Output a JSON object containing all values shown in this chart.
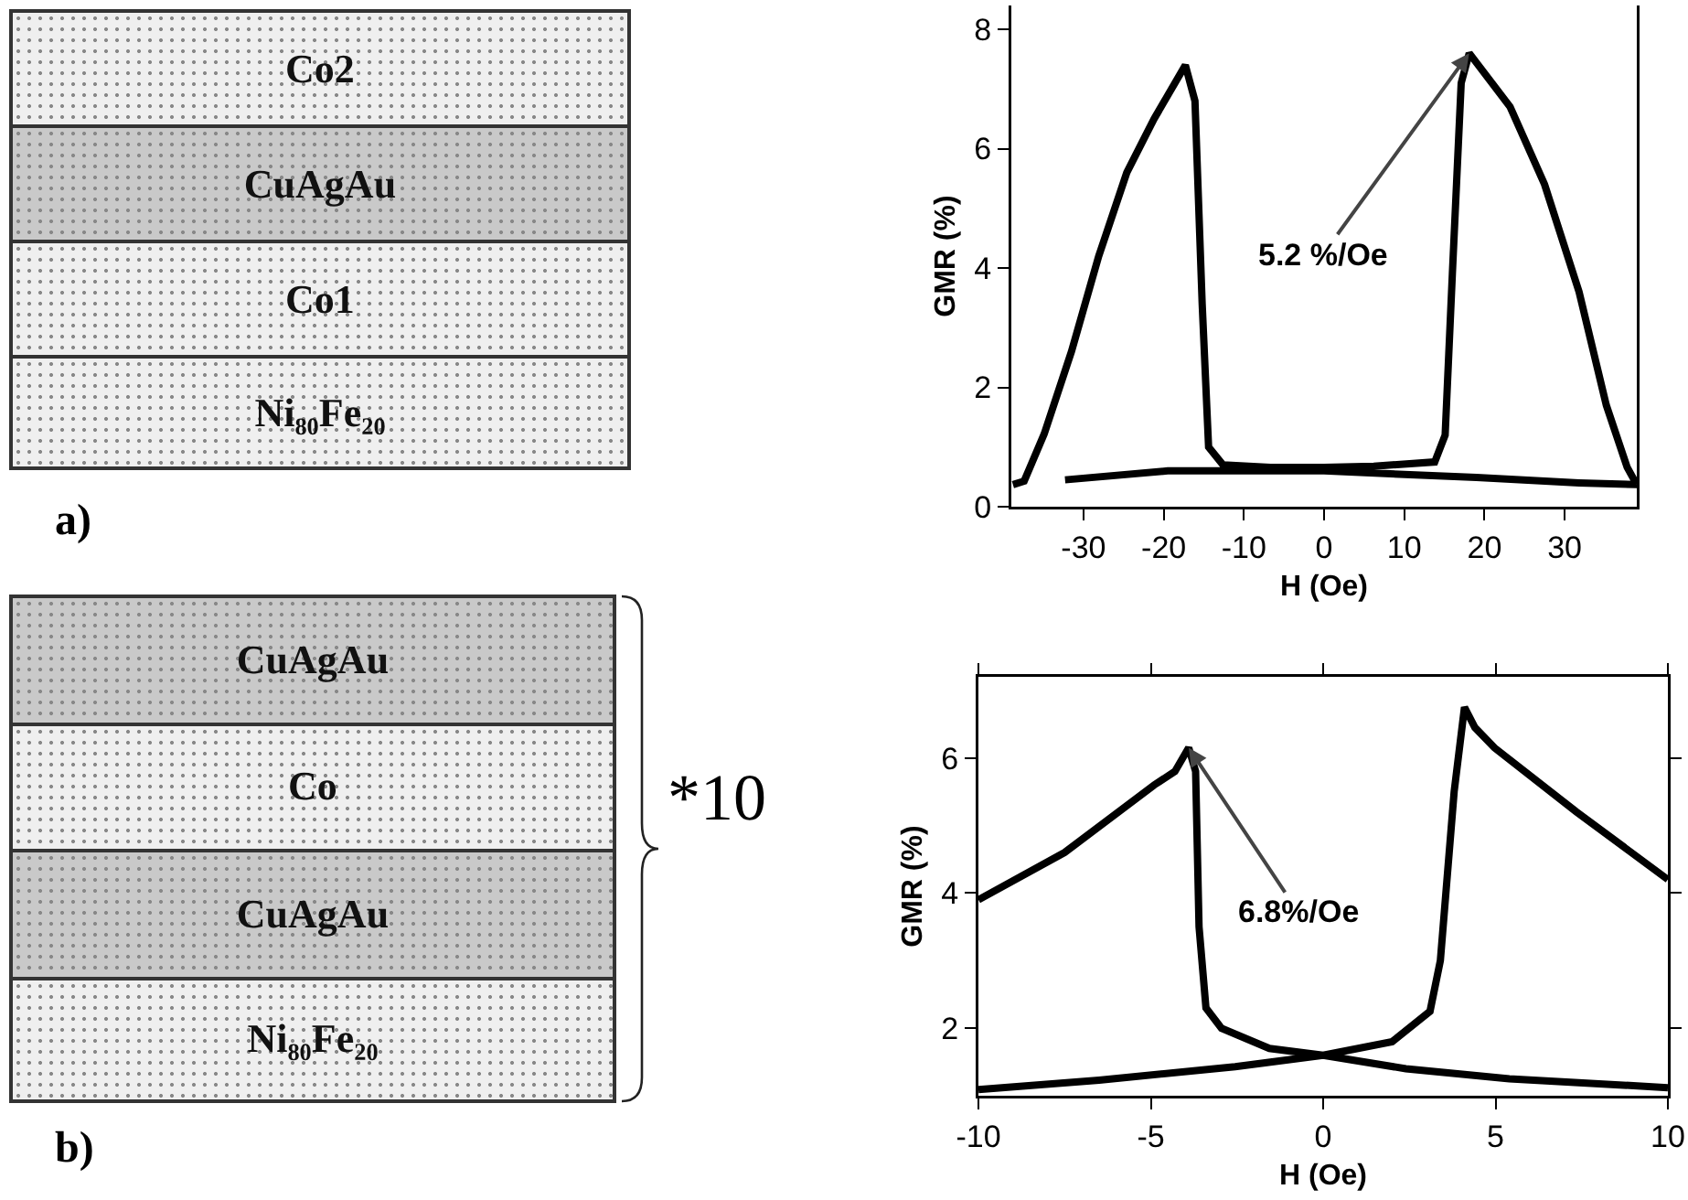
{
  "chart_data": [
    {
      "type": "other",
      "categories": [
        "Co2",
        "CuAgAu",
        "Co1",
        "Ni₈₀Fe₂₀"
      ],
      "colors": [
        "#efefef",
        "#c9c9c9",
        "#efefef",
        "#efefef"
      ],
      "annotations": [
        "a)"
      ]
    },
    {
      "type": "line",
      "xlabel": "H (Oe)",
      "ylabel": "GMR (%)",
      "xlim": [
        -39,
        39
      ],
      "ylim": [
        0,
        8.4
      ],
      "xticks": [
        -30,
        -20,
        -10,
        0,
        10,
        20,
        30
      ],
      "yticks": [
        0,
        2,
        4,
        6,
        8
      ],
      "grid": false,
      "line_style": "solid",
      "marker": "none",
      "series": [
        {
          "color": "#000000",
          "x": [
            -38.8,
            -37.4,
            -34.9,
            -31.5,
            -28.1,
            -24.6,
            -21.2,
            -17.3,
            -16.1,
            -15.2,
            -14.4,
            -12.6,
            -6.7,
            0,
            6.2,
            13.8,
            15.1,
            16,
            17.1,
            18.1,
            23.2,
            27.5,
            31.8,
            35.2,
            37.8,
            39,
            31.8,
            19,
            0,
            -19.5,
            -32.3
          ],
          "values": [
            0.37,
            0.43,
            1.22,
            2.6,
            4.2,
            5.6,
            6.5,
            7.4,
            6.8,
            3.4,
            1.0,
            0.7,
            0.66,
            0.66,
            0.68,
            0.75,
            1.2,
            3.9,
            7.1,
            7.6,
            6.7,
            5.4,
            3.6,
            1.7,
            0.66,
            0.37,
            0.4,
            0.49,
            0.6,
            0.6,
            0.45
          ]
        }
      ],
      "annotations": [
        {
          "text": "5.2 %/Oe",
          "x": 18.1,
          "y": 7.6
        }
      ]
    },
    {
      "type": "other",
      "categories": [
        "CuAgAu",
        "Co",
        "CuAgAu",
        "Ni₈₀Fe₂₀"
      ],
      "colors": [
        "#c9c9c9",
        "#efefef",
        "#c9c9c9",
        "#efefef"
      ],
      "annotations": [
        "*10",
        "b)"
      ]
    },
    {
      "type": "line",
      "xlabel": "H (Oe)",
      "ylabel": "GMR (%)",
      "xlim": [
        -10,
        10
      ],
      "ylim": [
        1,
        7.2
      ],
      "xticks": [
        -10,
        -5,
        0,
        5,
        10
      ],
      "yticks": [
        2,
        4,
        6
      ],
      "grid": false,
      "line_style": "solid",
      "marker": "none",
      "series": [
        {
          "color": "#000000",
          "x": [
            -10,
            -7.5,
            -4.9,
            -4.3,
            -3.9,
            -3.7,
            -3.6,
            -3.4,
            -2.95,
            -1.56,
            0,
            2.4,
            5.4,
            10,
            5.4,
            2.4,
            0,
            -2.55,
            -6.5,
            -10,
            -6.5,
            -2.55,
            0,
            2,
            3.1,
            3.4,
            3.8,
            4.1,
            4.4,
            4.97,
            7.35,
            10
          ],
          "values": [
            3.9,
            4.6,
            5.6,
            5.8,
            6.15,
            5.8,
            3.5,
            2.3,
            2.0,
            1.7,
            1.6,
            1.4,
            1.25,
            1.12,
            1.25,
            1.4,
            1.6,
            1.43,
            1.23,
            1.09,
            1.23,
            1.43,
            1.6,
            1.8,
            2.25,
            3.0,
            5.5,
            6.75,
            6.45,
            6.15,
            5.2,
            4.2
          ]
        }
      ],
      "annotations": [
        {
          "text": "6.8%/Oe",
          "x": -3.9,
          "y": 6.15
        }
      ]
    }
  ]
}
